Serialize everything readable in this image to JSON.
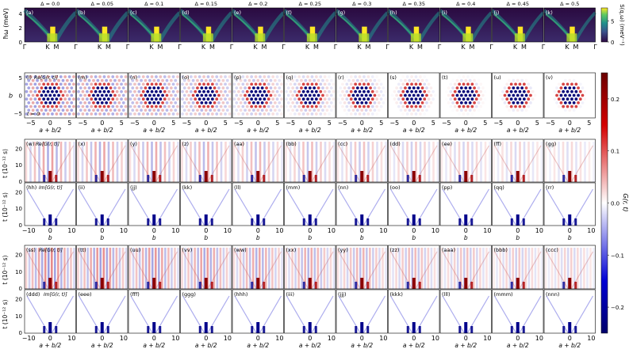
{
  "chart_data": {
    "type": "heatmap",
    "deltas": [
      "Δ = 0.0",
      "Δ = 0.05",
      "Δ = 0.1",
      "Δ = 0.15",
      "Δ = 0.2",
      "Δ = 0.25",
      "Δ = 0.3",
      "Δ = 0.35",
      "Δ = 0.4",
      "Δ = 0.45",
      "Δ = 0.5"
    ],
    "panel_letters": [
      [
        "(a)",
        "(b)",
        "(c)",
        "(d)",
        "(e)",
        "(f)",
        "(g)",
        "(h)",
        "(i)",
        "(j)",
        "(k)"
      ],
      [
        "(l)",
        "(m)",
        "(n)",
        "(o)",
        "(p)",
        "(q)",
        "(r)",
        "(s)",
        "(t)",
        "(u)",
        "(v)"
      ],
      [
        "(w)",
        "(x)",
        "(y)",
        "(z)",
        "(aa)",
        "(bb)",
        "(cc)",
        "(dd)",
        "(ee)",
        "(ff)",
        "(gg)"
      ],
      [
        "(hh)",
        "(ii)",
        "(jj)",
        "(kk)",
        "(ll)",
        "(mm)",
        "(nn)",
        "(oo)",
        "(pp)",
        "(qq)",
        "(rr)"
      ],
      [
        "(ss)",
        "(tt)",
        "(uu)",
        "(vv)",
        "(ww)",
        "(xx)",
        "(yy)",
        "(zz)",
        "(aaa)",
        "(bbb)",
        "(ccc)"
      ],
      [
        "(ddd)",
        "(eee)",
        "(fff)",
        "(ggg)",
        "(hhh)",
        "(iii)",
        "(jjj)",
        "(kkk)",
        "(lll)",
        "(mmm)",
        "(nnn)"
      ]
    ],
    "row_annotations": [
      "Re[G(r, t)]",
      "Re[G(r, t)]",
      "Im[G(r, t)]",
      "Re[G(r, t)]",
      "Im[G(r, t)]"
    ],
    "t0_annotation": "t = 0",
    "spectrum": {
      "ylabel": "ħω (meV)",
      "yticks": [
        "0",
        "2",
        "4"
      ],
      "xticks": [
        "Γ",
        "K",
        "M",
        "Γ"
      ],
      "cbar_label": "S(q,ω) (meV⁻¹)",
      "cbar_ticks": [
        "0",
        "5"
      ]
    },
    "realspace": {
      "ylabel": "b",
      "xlabel": "a + b/2",
      "yticks": [
        "5",
        "0",
        "−5"
      ],
      "xticks": [
        "−5",
        "0",
        "5"
      ]
    },
    "time_row1": {
      "ylabel": "t (10⁻¹² s)",
      "yticks": [
        "0",
        "10",
        "20"
      ],
      "xlabel": "b",
      "xticks": [
        "−10",
        "0",
        "10"
      ]
    },
    "time_row2": {
      "ylabel": "t (10⁻¹² s)",
      "yticks": [
        "0",
        "10",
        "20"
      ],
      "xlabel": "a + b/2",
      "xticks": [
        "−10",
        "0",
        "10"
      ]
    },
    "cbar_main": {
      "label": "G(r, t)",
      "ticks": [
        "0.2",
        "0.1",
        "0.0",
        "−0.1",
        "−0.2"
      ],
      "range": [
        -0.25,
        0.25
      ]
    },
    "colors": {
      "viridis_low": "#3b0f4f",
      "viridis_high": "#fde725",
      "pos": "#8b0000",
      "neg": "#00006b"
    }
  }
}
